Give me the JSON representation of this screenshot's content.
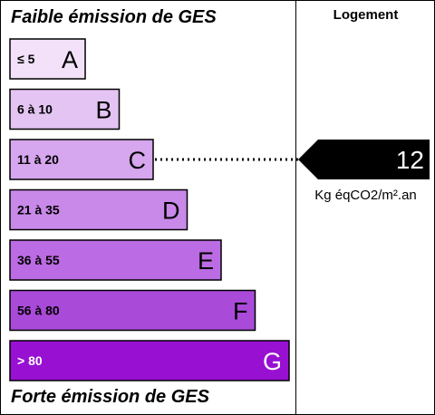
{
  "header": {
    "top_label": "Faible émission de GES",
    "bottom_label": "Forte émission de GES",
    "column_header": "Logement"
  },
  "chart_data": {
    "type": "bar",
    "categories": [
      "A",
      "B",
      "C",
      "D",
      "E",
      "F",
      "G"
    ],
    "ranges": [
      "≤ 5",
      "6 à 10",
      "11 à 20",
      "21 à 35",
      "36 à 55",
      "56 à 80",
      "> 80"
    ],
    "colors": [
      "#f2e1f9",
      "#e4c4f3",
      "#d6a6ee",
      "#c989e9",
      "#bb6be3",
      "#a94ad9",
      "#9810d2"
    ],
    "value": 12,
    "value_class": "C",
    "unit": "Kg éqCO2/m².an",
    "indicator_color": "#000000"
  }
}
